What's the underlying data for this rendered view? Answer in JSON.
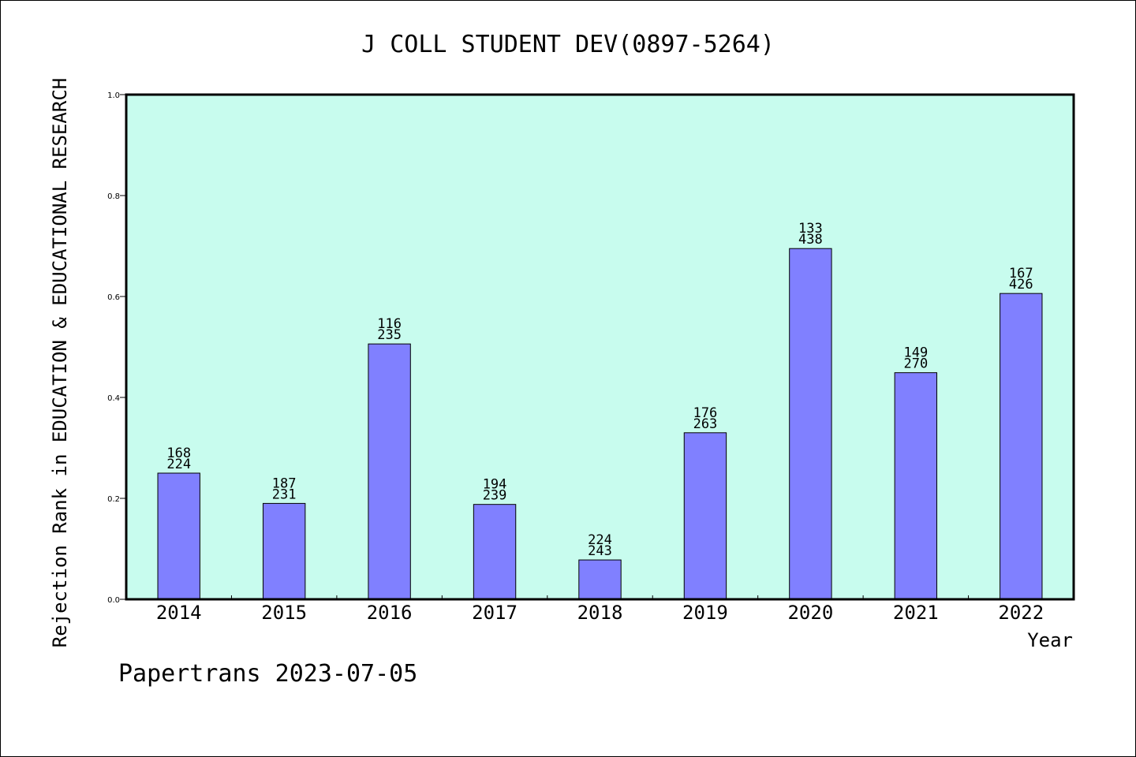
{
  "chart_data": {
    "type": "bar",
    "title": "J COLL STUDENT DEV(0897-5264)",
    "xlabel": "Year",
    "ylabel": "Rejection Rank in EDUCATION & EDUCATIONAL RESEARCH",
    "categories": [
      "2014",
      "2015",
      "2016",
      "2017",
      "2018",
      "2019",
      "2020",
      "2021",
      "2022"
    ],
    "values": [
      0.25,
      0.19,
      0.506,
      0.188,
      0.078,
      0.33,
      0.695,
      0.449,
      0.606
    ],
    "label_top": [
      "168",
      "187",
      "116",
      "194",
      "224",
      "176",
      "133",
      "149",
      "167"
    ],
    "label_bottom": [
      "224",
      "231",
      "235",
      "239",
      "243",
      "263",
      "438",
      "270",
      "426"
    ],
    "ylim": [
      0,
      1.0
    ],
    "yticks": [
      "0.0",
      "0.2",
      "0.4",
      "0.6",
      "0.8",
      "1.0"
    ],
    "grid": false,
    "colors": {
      "bar": "#8080ff",
      "plot_background": "#c8fcee",
      "axis": "#000000"
    }
  },
  "footer": "Papertrans 2023-07-05"
}
